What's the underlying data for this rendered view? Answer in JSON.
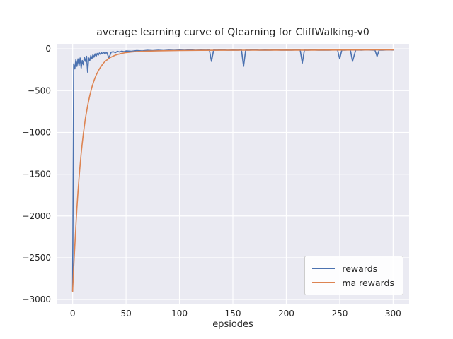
{
  "figure": {
    "background": "#ffffff",
    "panel_background": "#eaeaf2",
    "grid_color": "#ffffff"
  },
  "chart_data": {
    "type": "line",
    "title": "average learning curve of Qlearning for CliffWalking-v0",
    "xlabel": "epsiodes",
    "ylabel": "",
    "xlim": [
      -15,
      315
    ],
    "ylim": [
      -3050,
      60
    ],
    "xticks": [
      0,
      50,
      100,
      150,
      200,
      250,
      300
    ],
    "yticks": [
      0,
      -500,
      -1000,
      -1500,
      -2000,
      -2500,
      -3000
    ],
    "grid": true,
    "legend": {
      "position": "lower right",
      "entries": [
        "rewards",
        "ma rewards"
      ]
    },
    "series": [
      {
        "name": "rewards",
        "color": "#4c72b0",
        "x": [
          0,
          1,
          2,
          3,
          4,
          5,
          6,
          7,
          8,
          9,
          10,
          11,
          12,
          13,
          14,
          15,
          16,
          17,
          18,
          19,
          20,
          21,
          22,
          23,
          24,
          25,
          26,
          27,
          28,
          29,
          30,
          32,
          34,
          36,
          38,
          40,
          42,
          44,
          46,
          48,
          50,
          55,
          60,
          65,
          70,
          75,
          80,
          85,
          90,
          95,
          100,
          105,
          110,
          115,
          120,
          125,
          128,
          130,
          132,
          135,
          140,
          145,
          150,
          155,
          158,
          160,
          162,
          165,
          170,
          175,
          180,
          185,
          190,
          195,
          200,
          205,
          210,
          213,
          215,
          217,
          220,
          225,
          230,
          235,
          240,
          245,
          248,
          250,
          252,
          255,
          258,
          260,
          262,
          265,
          270,
          275,
          280,
          283,
          285,
          287,
          290,
          295,
          300
        ],
        "y": [
          -2900,
          -180,
          -240,
          -130,
          -210,
          -120,
          -200,
          -110,
          -230,
          -140,
          -190,
          -100,
          -150,
          -90,
          -280,
          -110,
          -140,
          -80,
          -120,
          -70,
          -100,
          -60,
          -90,
          -55,
          -75,
          -50,
          -65,
          -45,
          -60,
          -40,
          -55,
          -45,
          -110,
          -40,
          -35,
          -45,
          -30,
          -38,
          -28,
          -35,
          -25,
          -30,
          -20,
          -25,
          -18,
          -22,
          -16,
          -20,
          -15,
          -18,
          -14,
          -17,
          -13,
          -16,
          -14,
          -15,
          -13,
          -150,
          -14,
          -15,
          -13,
          -16,
          -14,
          -15,
          -13,
          -210,
          -14,
          -15,
          -13,
          -16,
          -14,
          -15,
          -13,
          -15,
          -14,
          -15,
          -13,
          -14,
          -170,
          -14,
          -15,
          -13,
          -16,
          -14,
          -15,
          -13,
          -14,
          -120,
          -14,
          -15,
          -13,
          -14,
          -150,
          -14,
          -15,
          -13,
          -14,
          -15,
          -90,
          -14,
          -15,
          -13,
          -14
        ]
      },
      {
        "name": "ma rewards",
        "color": "#dd8452",
        "x": [
          0,
          1,
          2,
          3,
          4,
          5,
          6,
          7,
          8,
          9,
          10,
          12,
          14,
          16,
          18,
          20,
          22,
          25,
          28,
          30,
          35,
          40,
          45,
          50,
          55,
          60,
          70,
          80,
          90,
          100,
          120,
          140,
          160,
          180,
          200,
          220,
          240,
          260,
          280,
          300
        ],
        "y": [
          -2900,
          -2620,
          -2360,
          -2120,
          -1900,
          -1710,
          -1540,
          -1390,
          -1250,
          -1130,
          -1020,
          -830,
          -680,
          -560,
          -460,
          -380,
          -315,
          -240,
          -185,
          -155,
          -105,
          -75,
          -57,
          -45,
          -38,
          -33,
          -27,
          -24,
          -22,
          -20,
          -18,
          -17,
          -16,
          -16,
          -15,
          -15,
          -14,
          -14,
          -13,
          -13
        ]
      }
    ]
  }
}
